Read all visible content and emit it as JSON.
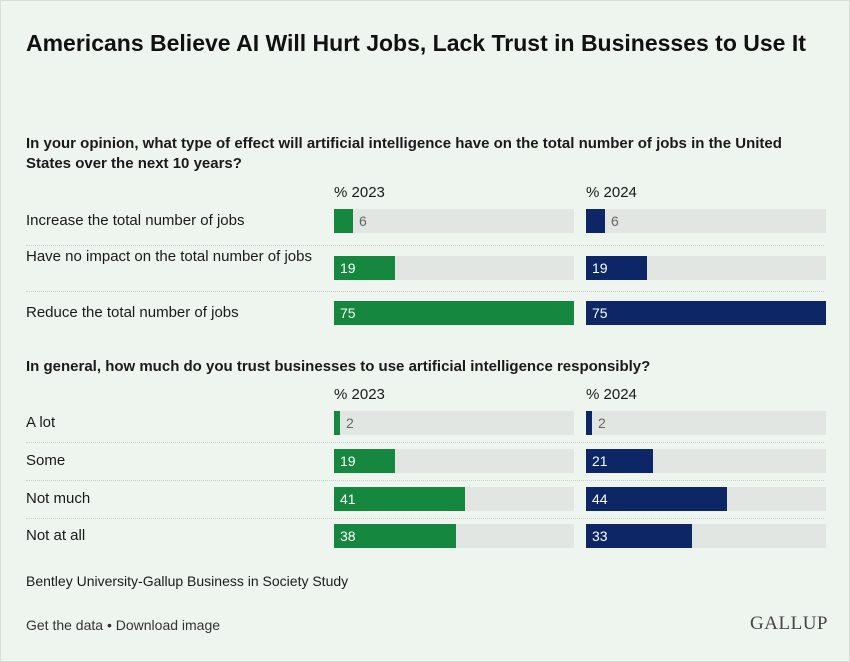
{
  "title": "Americans Believe AI Will Hurt Jobs, Lack Trust in Businesses to Use It",
  "colors": {
    "y2023": "#16873e",
    "y2024": "#0d2666",
    "track": "#e2e6e2"
  },
  "chart_data": [
    {
      "type": "bar",
      "title": "In your opinion, what type of effect will artificial intelligence have on the total number of jobs in the United States over the next 10 years?",
      "categories": [
        "Increase the total number of jobs",
        "Have no impact on the total number of jobs",
        "Reduce the total number of jobs"
      ],
      "series": [
        {
          "name": "% 2023",
          "values": [
            6,
            19,
            75
          ]
        },
        {
          "name": "% 2024",
          "values": [
            6,
            19,
            75
          ]
        }
      ],
      "xlim": [
        0,
        75
      ]
    },
    {
      "type": "bar",
      "title": "In general, how much do you trust businesses to use artificial intelligence responsibly?",
      "categories": [
        "A lot",
        "Some",
        "Not much",
        "Not at all"
      ],
      "series": [
        {
          "name": "% 2023",
          "values": [
            2,
            19,
            41,
            38
          ]
        },
        {
          "name": "% 2024",
          "values": [
            2,
            21,
            44,
            33
          ]
        }
      ],
      "xlim": [
        0,
        75
      ]
    }
  ],
  "source": "Bentley University-Gallup Business in Society Study",
  "footer": {
    "get_data": "Get the data",
    "separator": " • ",
    "download": "Download image"
  },
  "logo": "GALLUP"
}
